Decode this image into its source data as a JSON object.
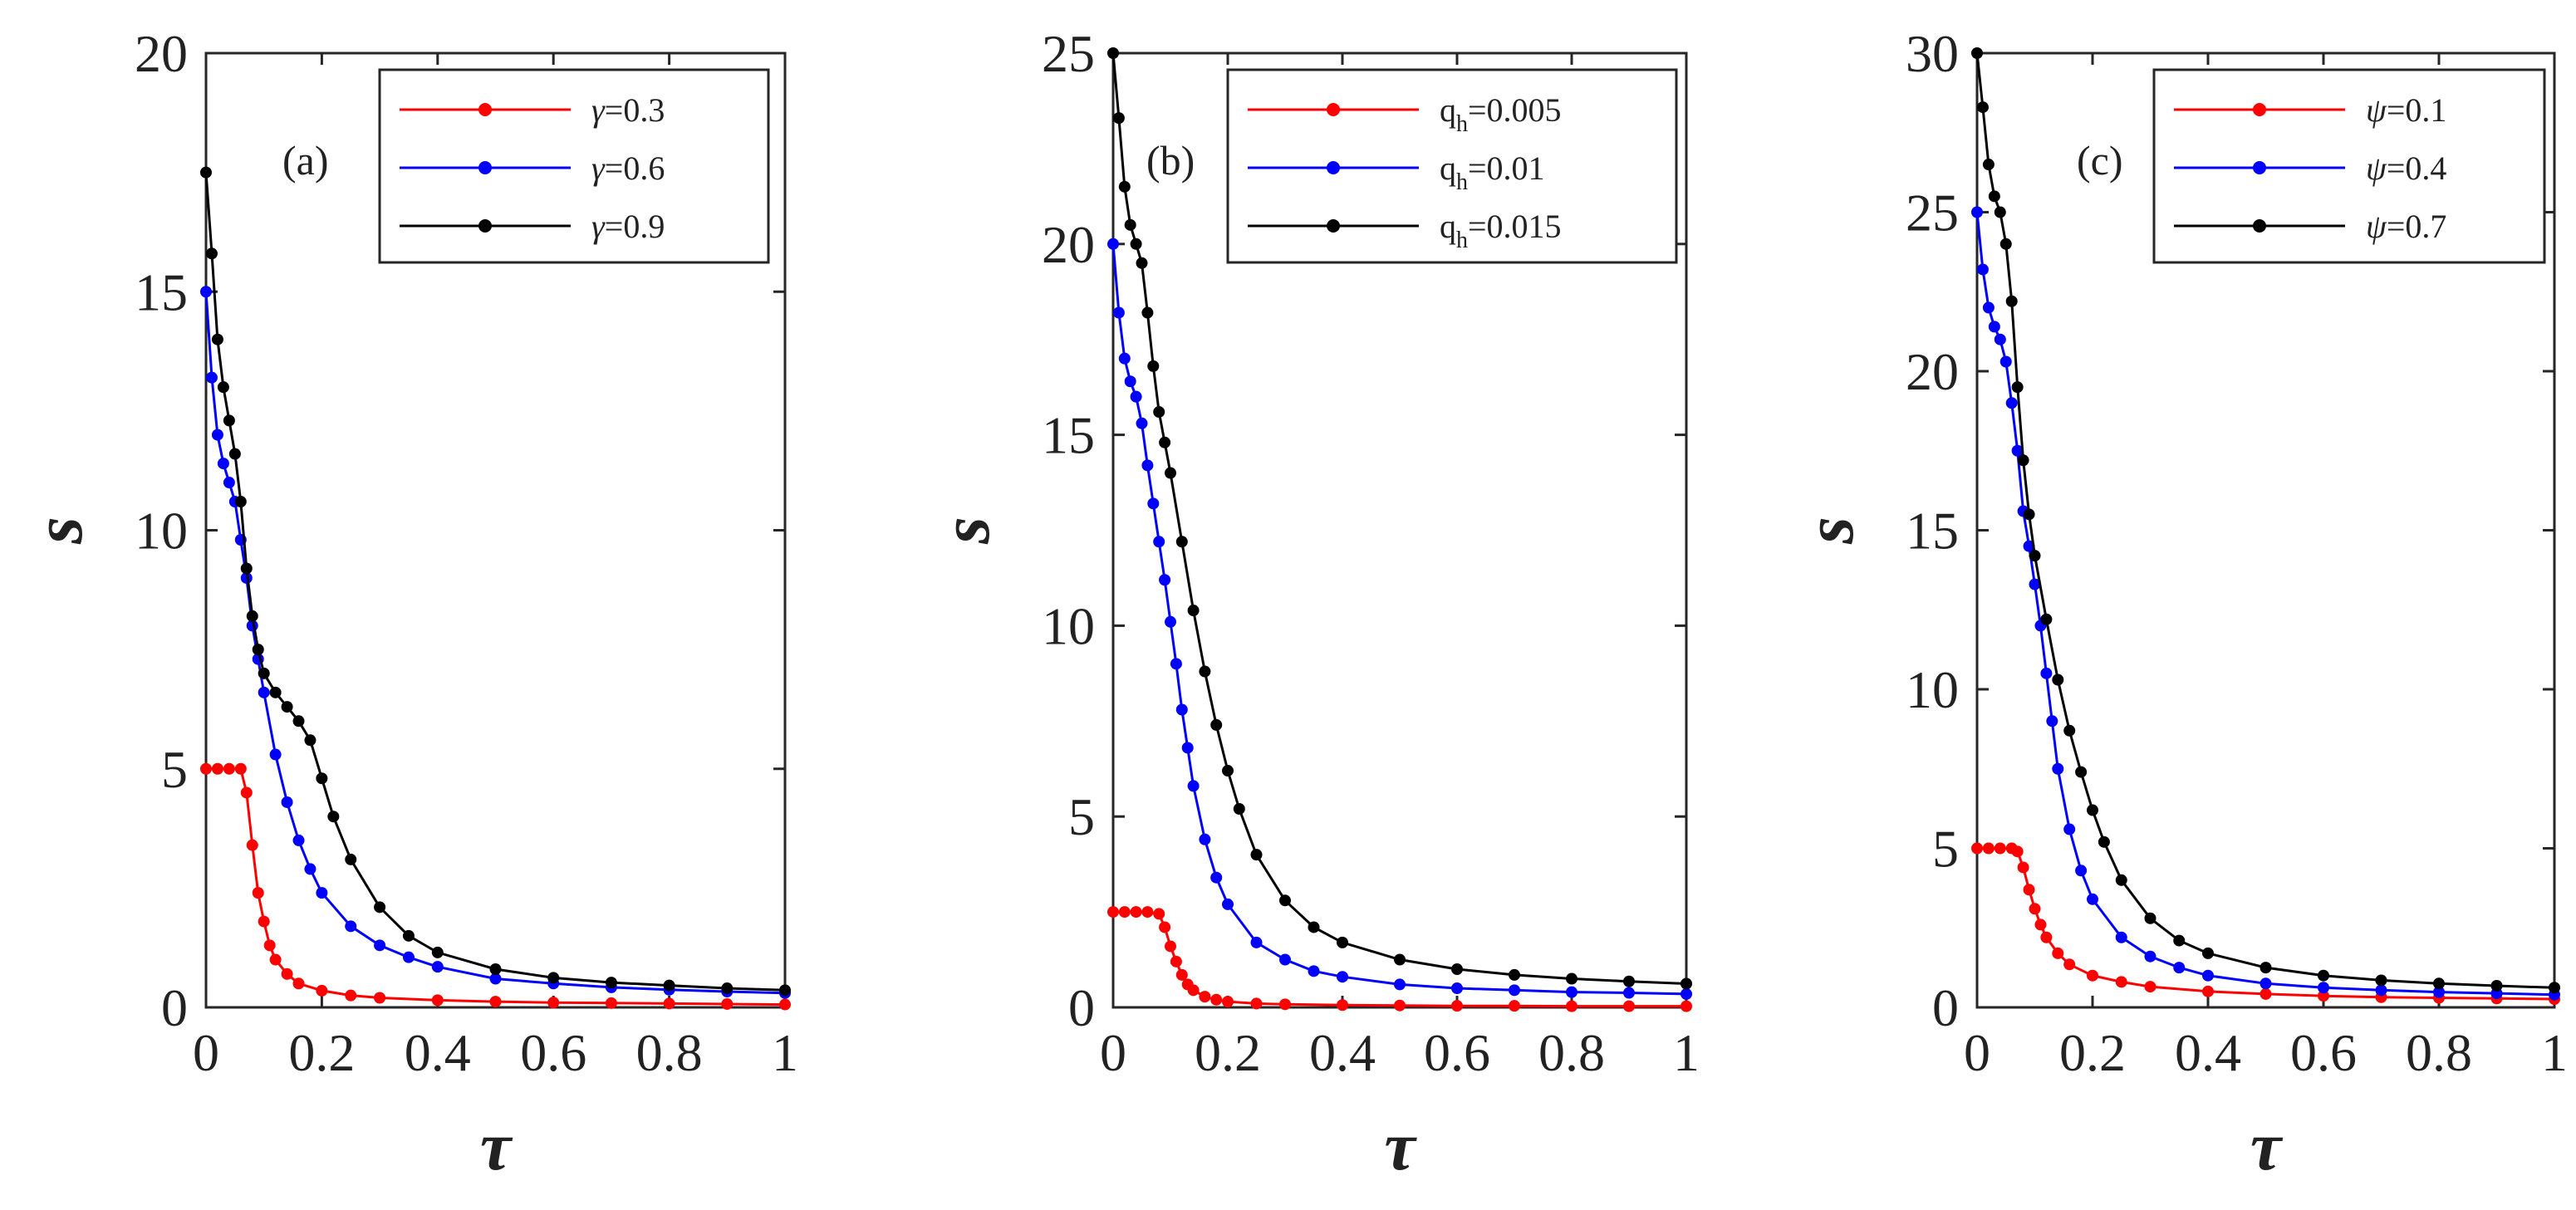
{
  "chart_data": [
    {
      "type": "line",
      "panel_label": "(a)",
      "xlabel": "τ",
      "ylabel": "s",
      "xlim": [
        0,
        1
      ],
      "ylim": [
        0,
        20
      ],
      "xticks": [
        0,
        0.2,
        0.4,
        0.6,
        0.8,
        1
      ],
      "xtick_labels": [
        "0",
        "0.2",
        "0.4",
        "0.6",
        "0.8",
        "1"
      ],
      "yticks": [
        0,
        5,
        10,
        15,
        20
      ],
      "ytick_labels": [
        "0",
        "5",
        "10",
        "15",
        "20"
      ],
      "legend_position": "top-right",
      "series": [
        {
          "name": "γ=0.3",
          "label_prefix": "γ",
          "label_value": "=0.3",
          "color": "#ff0000",
          "x": [
            0,
            0.02,
            0.04,
            0.06,
            0.07,
            0.08,
            0.09,
            0.1,
            0.11,
            0.12,
            0.14,
            0.16,
            0.2,
            0.25,
            0.3,
            0.4,
            0.5,
            0.6,
            0.7,
            0.8,
            0.9,
            1
          ],
          "y": [
            5,
            5,
            5,
            5,
            4.5,
            3.4,
            2.4,
            1.8,
            1.3,
            1.0,
            0.7,
            0.5,
            0.35,
            0.25,
            0.2,
            0.15,
            0.12,
            0.1,
            0.09,
            0.08,
            0.07,
            0.06
          ]
        },
        {
          "name": "γ=0.6",
          "label_prefix": "γ",
          "label_value": "=0.6",
          "color": "#0000ff",
          "x": [
            0,
            0.01,
            0.02,
            0.03,
            0.04,
            0.05,
            0.06,
            0.07,
            0.08,
            0.09,
            0.1,
            0.12,
            0.14,
            0.16,
            0.18,
            0.2,
            0.25,
            0.3,
            0.35,
            0.4,
            0.5,
            0.6,
            0.7,
            0.8,
            0.9,
            1
          ],
          "y": [
            15,
            13.2,
            12,
            11.4,
            11,
            10.6,
            9.8,
            9.0,
            8.0,
            7.3,
            6.6,
            5.3,
            4.3,
            3.5,
            2.9,
            2.4,
            1.7,
            1.3,
            1.05,
            0.85,
            0.6,
            0.5,
            0.42,
            0.37,
            0.33,
            0.3
          ]
        },
        {
          "name": "γ=0.9",
          "label_prefix": "γ",
          "label_value": "=0.9",
          "color": "#000000",
          "x": [
            0,
            0.01,
            0.02,
            0.03,
            0.04,
            0.05,
            0.06,
            0.07,
            0.08,
            0.09,
            0.1,
            0.12,
            0.14,
            0.16,
            0.18,
            0.2,
            0.22,
            0.25,
            0.3,
            0.35,
            0.4,
            0.5,
            0.6,
            0.7,
            0.8,
            0.9,
            1
          ],
          "y": [
            17.5,
            15.8,
            14,
            13,
            12.3,
            11.6,
            10.6,
            9.2,
            8.2,
            7.5,
            7.0,
            6.6,
            6.3,
            6.0,
            5.6,
            4.8,
            4.0,
            3.1,
            2.1,
            1.5,
            1.15,
            0.8,
            0.62,
            0.52,
            0.46,
            0.4,
            0.36
          ]
        }
      ]
    },
    {
      "type": "line",
      "panel_label": "(b)",
      "xlabel": "τ",
      "ylabel": "s",
      "xlim": [
        0,
        1
      ],
      "ylim": [
        0,
        25
      ],
      "xticks": [
        0,
        0.2,
        0.4,
        0.6,
        0.8,
        1
      ],
      "xtick_labels": [
        "0",
        "0.2",
        "0.4",
        "0.6",
        "0.8",
        "1"
      ],
      "yticks": [
        0,
        5,
        10,
        15,
        20,
        25
      ],
      "ytick_labels": [
        "0",
        "5",
        "10",
        "15",
        "20",
        "25"
      ],
      "legend_position": "top-right",
      "series": [
        {
          "name": "q_h=0.005",
          "label_prefix": "q",
          "label_sub": "h",
          "label_value": "=0.005",
          "color": "#ff0000",
          "x": [
            0,
            0.02,
            0.04,
            0.06,
            0.08,
            0.09,
            0.1,
            0.11,
            0.12,
            0.13,
            0.14,
            0.16,
            0.18,
            0.2,
            0.25,
            0.3,
            0.4,
            0.5,
            0.6,
            0.7,
            0.8,
            0.9,
            1
          ],
          "y": [
            2.5,
            2.5,
            2.5,
            2.5,
            2.45,
            2.1,
            1.6,
            1.2,
            0.85,
            0.6,
            0.45,
            0.28,
            0.2,
            0.15,
            0.1,
            0.08,
            0.06,
            0.05,
            0.04,
            0.04,
            0.03,
            0.03,
            0.03
          ]
        },
        {
          "name": "q_h=0.01",
          "label_prefix": "q",
          "label_sub": "h",
          "label_value": "=0.01",
          "color": "#0000ff",
          "x": [
            0,
            0.01,
            0.02,
            0.03,
            0.04,
            0.05,
            0.06,
            0.07,
            0.08,
            0.09,
            0.1,
            0.11,
            0.12,
            0.13,
            0.14,
            0.16,
            0.18,
            0.2,
            0.25,
            0.3,
            0.35,
            0.4,
            0.5,
            0.6,
            0.7,
            0.8,
            0.9,
            1
          ],
          "y": [
            20,
            18.2,
            17,
            16.4,
            16,
            15.3,
            14.2,
            13.2,
            12.2,
            11.2,
            10.1,
            9.0,
            7.8,
            6.8,
            5.8,
            4.4,
            3.4,
            2.7,
            1.7,
            1.25,
            0.95,
            0.8,
            0.6,
            0.5,
            0.45,
            0.4,
            0.38,
            0.35
          ]
        },
        {
          "name": "q_h=0.015",
          "label_prefix": "q",
          "label_sub": "h",
          "label_value": "=0.015",
          "color": "#000000",
          "x": [
            0,
            0.01,
            0.02,
            0.03,
            0.04,
            0.05,
            0.06,
            0.07,
            0.08,
            0.09,
            0.1,
            0.12,
            0.14,
            0.16,
            0.18,
            0.2,
            0.22,
            0.25,
            0.3,
            0.35,
            0.4,
            0.5,
            0.6,
            0.7,
            0.8,
            0.9,
            1
          ],
          "y": [
            25,
            23.3,
            21.5,
            20.5,
            20,
            19.5,
            18.2,
            16.8,
            15.6,
            14.8,
            14.0,
            12.2,
            10.4,
            8.8,
            7.4,
            6.2,
            5.2,
            4.0,
            2.8,
            2.1,
            1.7,
            1.25,
            1.0,
            0.85,
            0.75,
            0.68,
            0.62
          ]
        }
      ]
    },
    {
      "type": "line",
      "panel_label": "(c)",
      "xlabel": "τ",
      "ylabel": "s",
      "xlim": [
        0,
        1
      ],
      "ylim": [
        0,
        30
      ],
      "xticks": [
        0,
        0.2,
        0.4,
        0.6,
        0.8,
        1
      ],
      "xtick_labels": [
        "0",
        "0.2",
        "0.4",
        "0.6",
        "0.8",
        "1"
      ],
      "yticks": [
        0,
        5,
        10,
        15,
        20,
        25,
        30
      ],
      "ytick_labels": [
        "0",
        "5",
        "10",
        "15",
        "20",
        "25",
        "30"
      ],
      "legend_position": "top-right",
      "series": [
        {
          "name": "ψ=0.1",
          "label_prefix": "ψ",
          "label_value": "=0.1",
          "color": "#ff0000",
          "x": [
            0,
            0.02,
            0.04,
            0.06,
            0.07,
            0.08,
            0.09,
            0.1,
            0.11,
            0.12,
            0.14,
            0.16,
            0.2,
            0.25,
            0.3,
            0.4,
            0.5,
            0.6,
            0.7,
            0.8,
            0.9,
            1
          ],
          "y": [
            5,
            5,
            5,
            5,
            4.9,
            4.4,
            3.7,
            3.1,
            2.6,
            2.2,
            1.7,
            1.35,
            1.0,
            0.8,
            0.65,
            0.5,
            0.42,
            0.36,
            0.32,
            0.3,
            0.28,
            0.26
          ]
        },
        {
          "name": "ψ=0.4",
          "label_prefix": "ψ",
          "label_value": "=0.4",
          "color": "#0000ff",
          "x": [
            0,
            0.01,
            0.02,
            0.03,
            0.04,
            0.05,
            0.06,
            0.07,
            0.08,
            0.09,
            0.1,
            0.11,
            0.12,
            0.13,
            0.14,
            0.16,
            0.18,
            0.2,
            0.25,
            0.3,
            0.35,
            0.4,
            0.5,
            0.6,
            0.7,
            0.8,
            0.9,
            1
          ],
          "y": [
            25,
            23.2,
            22,
            21.4,
            21,
            20.3,
            19,
            17.5,
            15.6,
            14.5,
            13.3,
            12.0,
            10.5,
            9.0,
            7.5,
            5.6,
            4.3,
            3.4,
            2.2,
            1.6,
            1.25,
            1.0,
            0.75,
            0.62,
            0.54,
            0.48,
            0.44,
            0.4
          ]
        },
        {
          "name": "ψ=0.7",
          "label_prefix": "ψ",
          "label_value": "=0.7",
          "color": "#000000",
          "x": [
            0,
            0.01,
            0.02,
            0.03,
            0.04,
            0.05,
            0.06,
            0.07,
            0.08,
            0.09,
            0.1,
            0.12,
            0.14,
            0.16,
            0.18,
            0.2,
            0.22,
            0.25,
            0.3,
            0.35,
            0.4,
            0.5,
            0.6,
            0.7,
            0.8,
            0.9,
            1
          ],
          "y": [
            30,
            28.3,
            26.5,
            25.5,
            25,
            24,
            22.2,
            19.5,
            17.2,
            15.5,
            14.2,
            12.2,
            10.3,
            8.7,
            7.4,
            6.2,
            5.2,
            4.0,
            2.8,
            2.1,
            1.7,
            1.25,
            1.0,
            0.85,
            0.75,
            0.68,
            0.62
          ]
        }
      ]
    }
  ]
}
